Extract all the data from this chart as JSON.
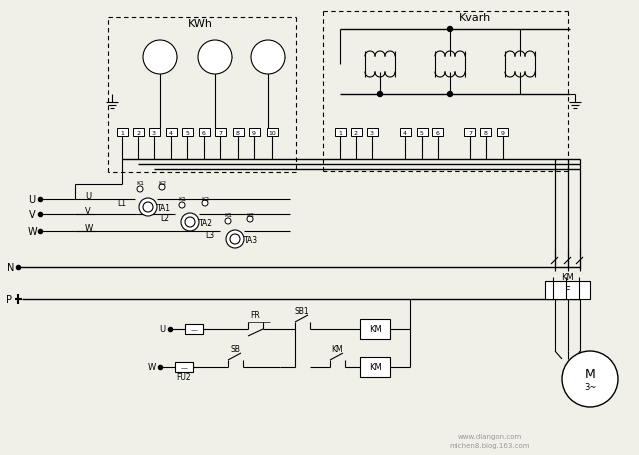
{
  "bg_color": "#f0f0e8",
  "line_color": "#000000",
  "watermark1": "www.diangon.com",
  "watermark2": "michen8.blog.163.com",
  "kwh_label": "KWh",
  "kvarh_label": "Kvarh",
  "font_size": 7,
  "small_font_size": 5.5
}
